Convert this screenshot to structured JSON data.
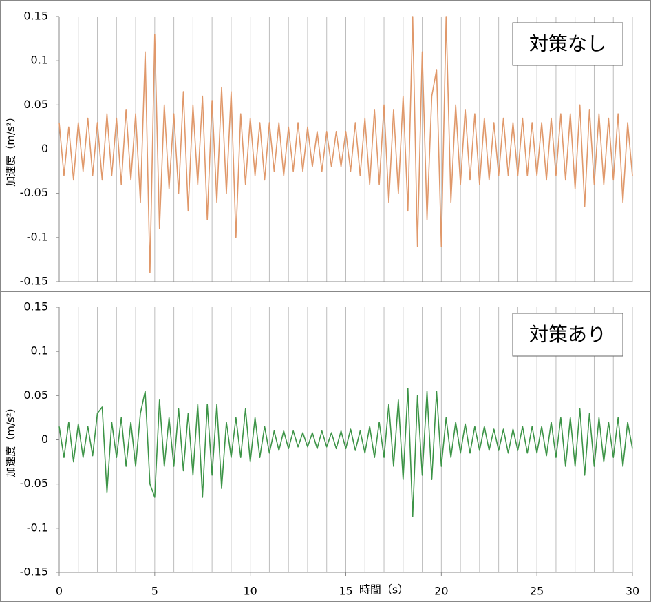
{
  "chart_data": [
    {
      "type": "line",
      "annotation": "対策なし",
      "ylabel": "加速度（m/s²）",
      "color": "#e0986a",
      "xlim": [
        0,
        30
      ],
      "ylim": [
        -0.15,
        0.15
      ],
      "yticks": [
        0.15,
        0.1,
        0.05,
        0,
        -0.05,
        -0.1,
        -0.15
      ],
      "xgrid": [
        0,
        1,
        2,
        3,
        4,
        5,
        6,
        7,
        8,
        9,
        10,
        11,
        12,
        13,
        14,
        15,
        16,
        17,
        18,
        19,
        20,
        21,
        22,
        23,
        24,
        25,
        26,
        27,
        28,
        29,
        30
      ],
      "x": [
        0,
        0.25,
        0.5,
        0.75,
        1,
        1.25,
        1.5,
        1.75,
        2,
        2.25,
        2.5,
        2.75,
        3,
        3.25,
        3.5,
        3.75,
        4,
        4.25,
        4.5,
        4.75,
        5,
        5.25,
        5.5,
        5.75,
        6,
        6.25,
        6.5,
        6.75,
        7,
        7.25,
        7.5,
        7.75,
        8,
        8.25,
        8.5,
        8.75,
        9,
        9.25,
        9.5,
        9.75,
        10,
        10.25,
        10.5,
        10.75,
        11,
        11.25,
        11.5,
        11.75,
        12,
        12.25,
        12.5,
        12.75,
        13,
        13.25,
        13.5,
        13.75,
        14,
        14.25,
        14.5,
        14.75,
        15,
        15.25,
        15.5,
        15.75,
        16,
        16.25,
        16.5,
        16.75,
        17,
        17.25,
        17.5,
        17.75,
        18,
        18.25,
        18.5,
        18.75,
        19,
        19.25,
        19.5,
        19.75,
        20,
        20.25,
        20.5,
        20.75,
        21,
        21.25,
        21.5,
        21.75,
        22,
        22.25,
        22.5,
        22.75,
        23,
        23.25,
        23.5,
        23.75,
        24,
        24.25,
        24.5,
        24.75,
        25,
        25.25,
        25.5,
        25.75,
        26,
        26.25,
        26.5,
        26.75,
        27,
        27.25,
        27.5,
        27.75,
        28,
        28.25,
        28.5,
        28.75,
        29,
        29.25,
        29.5,
        29.75,
        30
      ],
      "values": [
        0.03,
        -0.03,
        0.025,
        -0.035,
        0.03,
        -0.025,
        0.035,
        -0.03,
        0.03,
        -0.035,
        0.04,
        -0.03,
        0.035,
        -0.04,
        0.045,
        -0.035,
        0.04,
        -0.06,
        0.11,
        -0.14,
        0.13,
        -0.09,
        0.05,
        -0.045,
        0.04,
        -0.05,
        0.065,
        -0.07,
        0.05,
        -0.04,
        0.06,
        -0.08,
        0.055,
        -0.06,
        0.07,
        -0.05,
        0.065,
        -0.1,
        0.04,
        -0.04,
        0.035,
        -0.03,
        0.03,
        -0.035,
        0.03,
        -0.025,
        0.03,
        -0.03,
        0.025,
        -0.025,
        0.03,
        -0.025,
        0.025,
        -0.02,
        0.02,
        -0.025,
        0.02,
        -0.02,
        0.02,
        -0.02,
        0.02,
        -0.025,
        0.03,
        -0.03,
        0.035,
        -0.04,
        0.045,
        -0.04,
        0.05,
        -0.06,
        0.045,
        -0.05,
        0.06,
        -0.07,
        0.15,
        -0.11,
        0.11,
        -0.08,
        0.06,
        0.09,
        -0.11,
        0.15,
        -0.06,
        0.05,
        -0.04,
        0.045,
        -0.035,
        0.04,
        -0.04,
        0.035,
        -0.035,
        0.03,
        -0.03,
        0.035,
        -0.03,
        0.03,
        -0.03,
        0.035,
        -0.03,
        0.03,
        -0.03,
        0.03,
        -0.035,
        0.035,
        -0.03,
        0.04,
        -0.035,
        0.04,
        -0.045,
        0.05,
        -0.065,
        0.045,
        -0.04,
        0.04,
        -0.04,
        0.035,
        -0.035,
        0.04,
        -0.06,
        0.03,
        -0.03
      ]
    },
    {
      "type": "line",
      "annotation": "対策あり",
      "ylabel": "加速度（m/s²）",
      "xlabel": "時間（s）",
      "color": "#3d9447",
      "xlim": [
        0,
        30
      ],
      "xticks": [
        0,
        5,
        10,
        15,
        20,
        25,
        30
      ],
      "ylim": [
        -0.15,
        0.15
      ],
      "yticks": [
        0.15,
        0.1,
        0.05,
        0,
        -0.05,
        -0.1,
        -0.15
      ],
      "xgrid": [
        0,
        1,
        2,
        3,
        4,
        5,
        6,
        7,
        8,
        9,
        10,
        11,
        12,
        13,
        14,
        15,
        16,
        17,
        18,
        19,
        20,
        21,
        22,
        23,
        24,
        25,
        26,
        27,
        28,
        29,
        30
      ],
      "x": [
        0,
        0.25,
        0.5,
        0.75,
        1,
        1.25,
        1.5,
        1.75,
        2,
        2.25,
        2.5,
        2.75,
        3,
        3.25,
        3.5,
        3.75,
        4,
        4.25,
        4.5,
        4.75,
        5,
        5.25,
        5.5,
        5.75,
        6,
        6.25,
        6.5,
        6.75,
        7,
        7.25,
        7.5,
        7.75,
        8,
        8.25,
        8.5,
        8.75,
        9,
        9.25,
        9.5,
        9.75,
        10,
        10.25,
        10.5,
        10.75,
        11,
        11.25,
        11.5,
        11.75,
        12,
        12.25,
        12.5,
        12.75,
        13,
        13.25,
        13.5,
        13.75,
        14,
        14.25,
        14.5,
        14.75,
        15,
        15.25,
        15.5,
        15.75,
        16,
        16.25,
        16.5,
        16.75,
        17,
        17.25,
        17.5,
        17.75,
        18,
        18.25,
        18.5,
        18.75,
        19,
        19.25,
        19.5,
        19.75,
        20,
        20.25,
        20.5,
        20.75,
        21,
        21.25,
        21.5,
        21.75,
        22,
        22.25,
        22.5,
        22.75,
        23,
        23.25,
        23.5,
        23.75,
        24,
        24.25,
        24.5,
        24.75,
        25,
        25.25,
        25.5,
        25.75,
        26,
        26.25,
        26.5,
        26.75,
        27,
        27.25,
        27.5,
        27.75,
        28,
        28.25,
        28.5,
        28.75,
        29,
        29.25,
        29.5,
        29.75,
        30
      ],
      "values": [
        0.015,
        -0.02,
        0.02,
        -0.025,
        0.018,
        -0.02,
        0.015,
        -0.018,
        0.03,
        0.037,
        -0.06,
        0.02,
        -0.02,
        0.025,
        -0.03,
        0.02,
        -0.03,
        0.03,
        0.055,
        -0.05,
        -0.065,
        0.045,
        -0.03,
        0.025,
        -0.03,
        0.035,
        -0.035,
        0.03,
        -0.04,
        0.04,
        -0.065,
        0.04,
        -0.04,
        0.04,
        -0.055,
        0.02,
        -0.02,
        0.025,
        -0.02,
        0.035,
        -0.025,
        0.025,
        -0.02,
        0.015,
        -0.015,
        0.01,
        -0.012,
        0.01,
        -0.01,
        0.01,
        -0.008,
        0.008,
        -0.008,
        0.008,
        -0.01,
        0.01,
        -0.008,
        0.008,
        -0.01,
        0.01,
        -0.01,
        0.012,
        -0.012,
        0.01,
        -0.015,
        0.015,
        -0.02,
        0.02,
        -0.02,
        0.04,
        -0.03,
        0.045,
        -0.045,
        0.058,
        -0.087,
        0.05,
        -0.04,
        0.055,
        -0.045,
        0.055,
        -0.03,
        0.025,
        -0.02,
        0.02,
        -0.015,
        0.018,
        -0.015,
        0.015,
        -0.012,
        0.015,
        -0.012,
        0.012,
        -0.012,
        0.012,
        -0.015,
        0.012,
        -0.012,
        0.015,
        -0.015,
        0.015,
        -0.015,
        0.015,
        -0.018,
        0.02,
        -0.02,
        0.025,
        -0.03,
        0.025,
        -0.03,
        0.035,
        -0.04,
        0.03,
        -0.03,
        0.025,
        -0.025,
        0.02,
        -0.02,
        0.025,
        -0.03,
        0.02,
        -0.01
      ]
    }
  ]
}
